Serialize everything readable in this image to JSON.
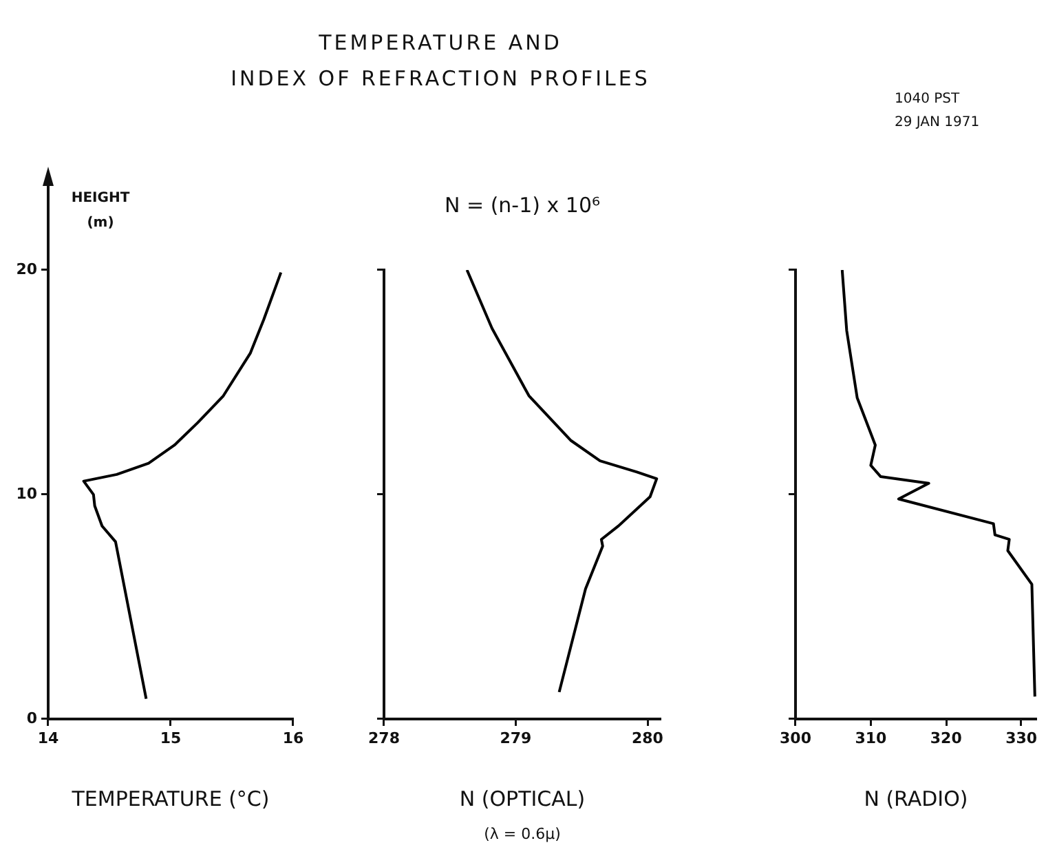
{
  "chart_data": [
    {
      "type": "line",
      "title": "TEMPERATURE AND\nINDEX OF REFRACTION PROFILES",
      "xlabel": "TEMPERATURE (°C)",
      "ylabel": "HEIGHT\n(m)",
      "xlim": [
        14,
        16
      ],
      "xticks": [
        14,
        15,
        16
      ],
      "ylim": [
        0,
        24
      ],
      "yticks": [
        0,
        10,
        20
      ],
      "grid": false,
      "legend": false,
      "x": [
        14.8,
        14.55,
        14.44,
        14.38,
        14.37,
        14.29,
        14.56,
        14.82,
        15.03,
        15.22,
        15.43,
        15.65,
        15.76,
        15.9
      ],
      "values": [
        0.9,
        7.9,
        8.6,
        9.5,
        10.0,
        10.6,
        10.9,
        11.4,
        12.2,
        13.2,
        14.4,
        16.3,
        17.8,
        19.9
      ],
      "color": "#000000"
    },
    {
      "type": "line",
      "xlabel": "N (OPTICAL)",
      "annotations": [
        "N = (n-1) x 10⁶",
        "(λ = 0.6µ)"
      ],
      "xlim": [
        278,
        280.1
      ],
      "xticks": [
        278,
        279,
        280
      ],
      "ylim": [
        0,
        20
      ],
      "yticks": [
        0,
        10,
        20
      ],
      "tick_labels": "x",
      "grid": false,
      "legend": false,
      "x": [
        279.33,
        279.53,
        279.66,
        279.65,
        279.78,
        280.02,
        280.07,
        279.92,
        279.64,
        279.42,
        279.1,
        278.82,
        278.63
      ],
      "values": [
        1.2,
        5.8,
        7.7,
        8.0,
        8.6,
        9.9,
        10.7,
        11.0,
        11.5,
        12.4,
        14.4,
        17.4,
        20.0
      ],
      "color": "#000000"
    },
    {
      "type": "line",
      "xlabel": "N (RADIO)",
      "annotations": [
        "1040 PST\n29 JAN 1971"
      ],
      "xlim": [
        300,
        332
      ],
      "xticks": [
        300,
        310,
        320,
        330
      ],
      "ylim": [
        0,
        20
      ],
      "yticks": [
        0,
        10,
        20
      ],
      "tick_labels": "x",
      "grid": false,
      "legend": false,
      "x": [
        331.8,
        331.4,
        328.2,
        328.4,
        326.5,
        326.3,
        313.7,
        317.7,
        311.3,
        310.0,
        310.6,
        308.2,
        306.8,
        306.2
      ],
      "values": [
        1.0,
        6.0,
        7.5,
        8.0,
        8.2,
        8.7,
        9.8,
        10.5,
        10.8,
        11.3,
        12.2,
        14.3,
        17.3,
        20.0
      ],
      "color": "#000000"
    }
  ]
}
